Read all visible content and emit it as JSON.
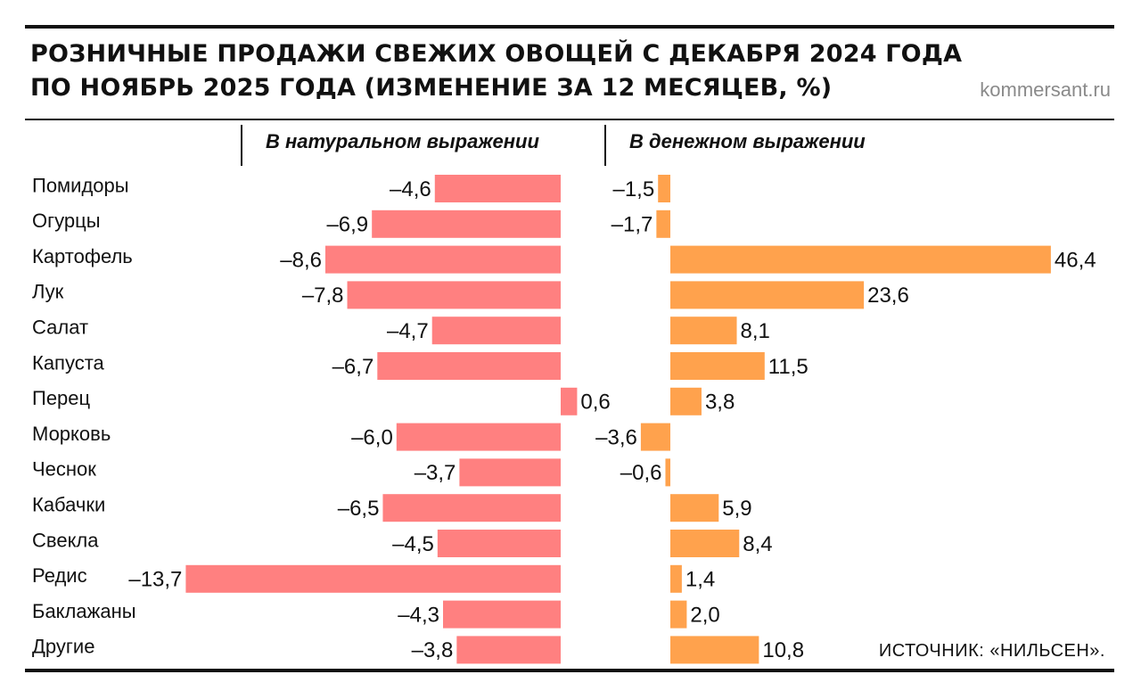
{
  "title_line1": "РОЗНИЧНЫЕ ПРОДАЖИ СВЕЖИХ ОВОЩЕЙ С ДЕКАБРЯ 2024 ГОДА",
  "title_line2": "ПО НОЯБРЬ 2025 ГОДА (ИЗМЕНЕНИЕ ЗА 12 МЕСЯЦЕВ, %)",
  "site": "kommersant.ru",
  "source": "ИСТОЧНИК: «НИЛЬСЕН».",
  "colors": {
    "volume": "#ff8080",
    "value": "#ffa24d"
  },
  "chart_data": {
    "type": "bar",
    "orientation": "horizontal",
    "categories": [
      "Помидоры",
      "Огурцы",
      "Картофель",
      "Лук",
      "Салат",
      "Капуста",
      "Перец",
      "Морковь",
      "Чеснок",
      "Кабачки",
      "Свекла",
      "Редис",
      "Баклажаны",
      "Другие"
    ],
    "series": [
      {
        "name": "В натуральном выражении",
        "values": [
          -4.6,
          -6.9,
          -8.6,
          -7.8,
          -4.7,
          -6.7,
          0.6,
          -6.0,
          -3.7,
          -6.5,
          -4.5,
          -13.7,
          -4.3,
          -3.8
        ],
        "labels": [
          "–4,6",
          "–6,9",
          "–8,6",
          "–7,8",
          "–4,7",
          "–6,7",
          "0,6",
          "–6,0",
          "–3,7",
          "–6,5",
          "–4,5",
          "–13,7",
          "–4,3",
          "–3,8"
        ]
      },
      {
        "name": "В денежном выражении",
        "values": [
          -1.5,
          -1.7,
          46.4,
          23.6,
          8.1,
          11.5,
          3.8,
          -3.6,
          -0.6,
          5.9,
          8.4,
          1.4,
          2.0,
          10.8
        ],
        "labels": [
          "–1,5",
          "–1,7",
          "46,4",
          "23,6",
          "8,1",
          "11,5",
          "3,8",
          "–3,6",
          "–0,6",
          "5,9",
          "8,4",
          "1,4",
          "2,0",
          "10,8"
        ]
      }
    ]
  }
}
